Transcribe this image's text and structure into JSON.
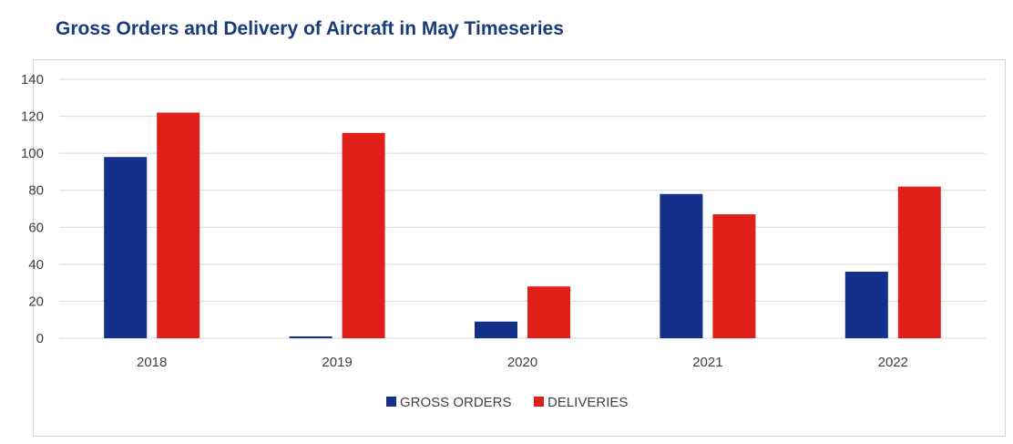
{
  "chart_data": {
    "type": "bar",
    "title": "Gross Orders and Delivery of Aircraft in May Timeseries",
    "categories": [
      "2018",
      "2019",
      "2020",
      "2021",
      "2022"
    ],
    "series": [
      {
        "name": "GROSS ORDERS",
        "color": "#13308a",
        "values": [
          98,
          1,
          9,
          78,
          36
        ]
      },
      {
        "name": "DELIVERIES",
        "color": "#e01f1a",
        "values": [
          122,
          111,
          28,
          67,
          82
        ]
      }
    ],
    "ylim": [
      0,
      140
    ],
    "yticks": [
      0,
      20,
      40,
      60,
      80,
      100,
      120,
      140
    ],
    "grid": true,
    "legend": "bottom",
    "gridColor": "#d9d9d9"
  }
}
